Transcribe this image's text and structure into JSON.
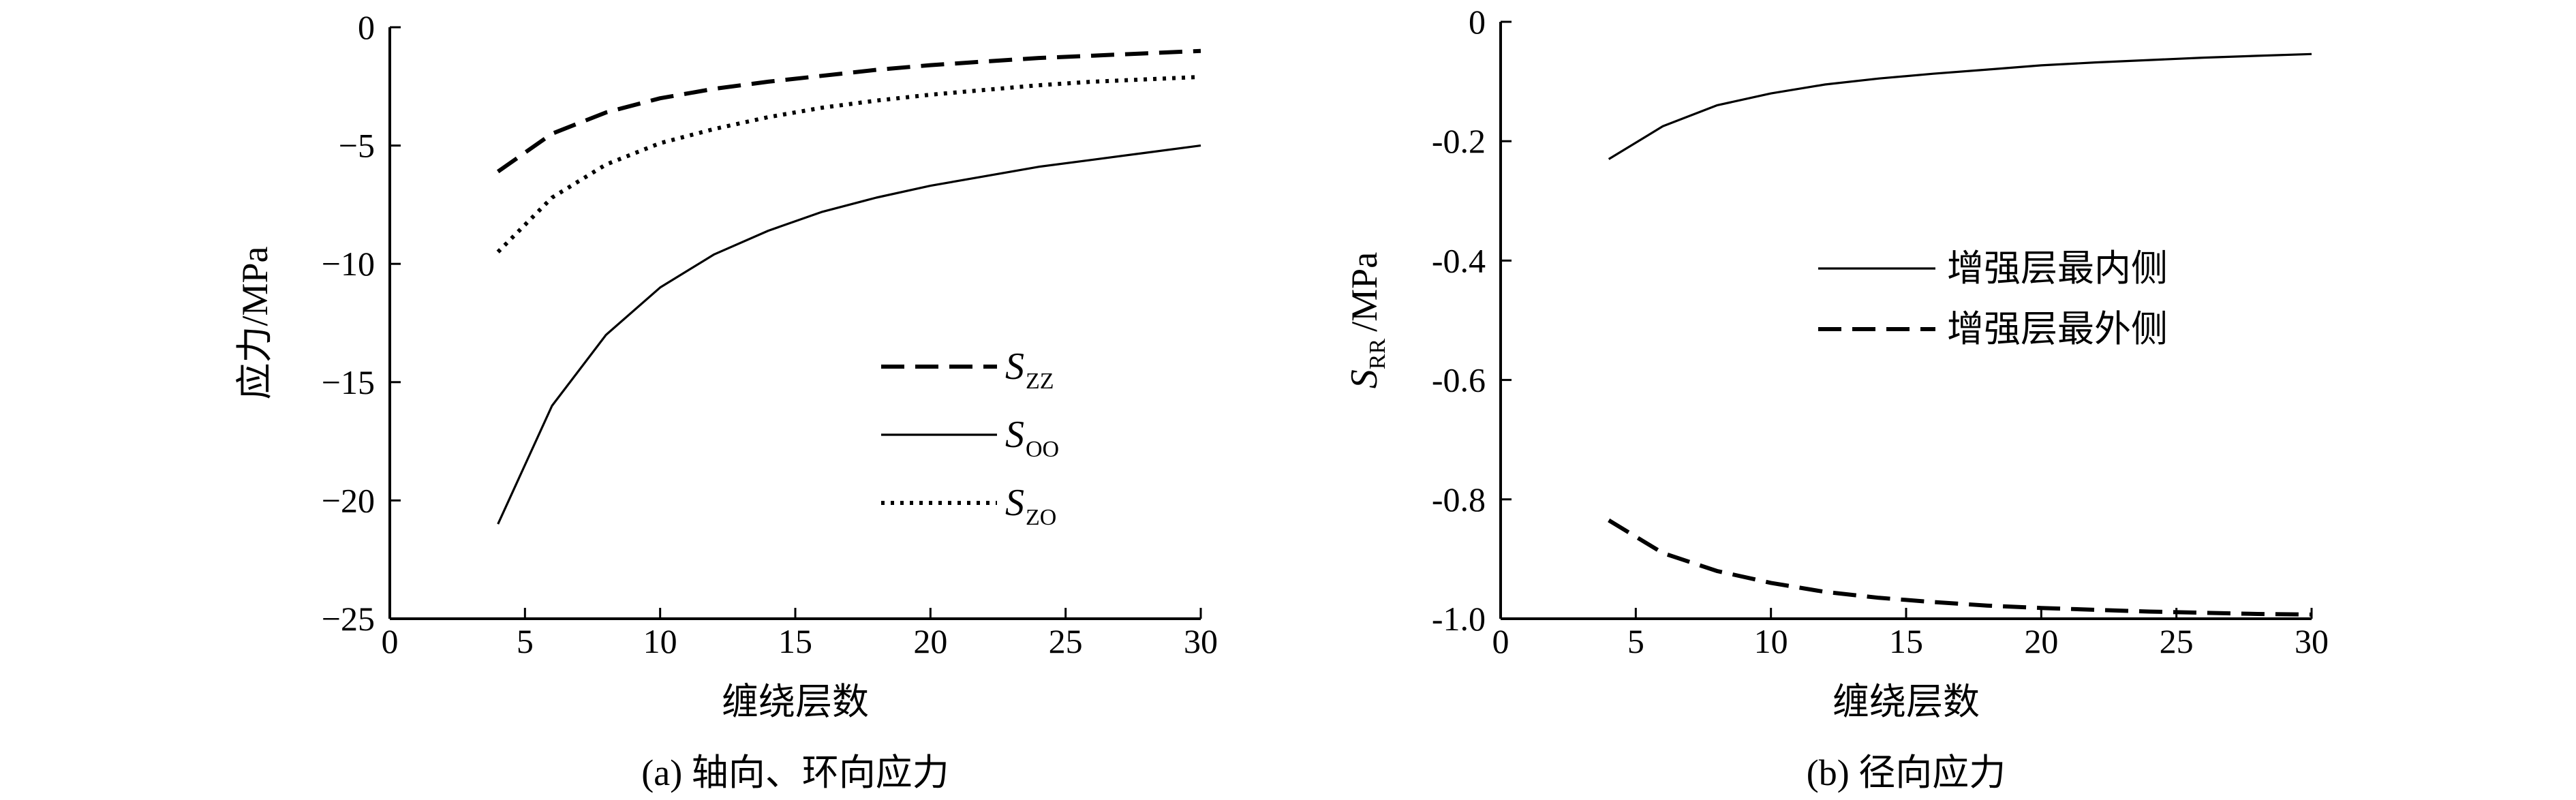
{
  "chart_data": [
    {
      "type": "line",
      "panel": "a",
      "caption": "(a) 轴向、环向应力",
      "xlabel": "缠绕层数",
      "ylabel": "应力/MPa",
      "xlim": [
        0,
        30
      ],
      "ylim": [
        -25,
        0
      ],
      "xticks": [
        0,
        5,
        10,
        15,
        20,
        25,
        30
      ],
      "yticks": [
        0,
        -5,
        -10,
        -15,
        -20,
        -25
      ],
      "xtick_labels": [
        "0",
        "5",
        "10",
        "15",
        "20",
        "25",
        "30"
      ],
      "ytick_labels": [
        "0",
        "−5",
        "−10",
        "−15",
        "−20",
        "−25"
      ],
      "legend_position": "right-middle",
      "grid": false,
      "x": [
        4,
        6,
        8,
        10,
        12,
        14,
        16,
        18,
        20,
        22,
        24,
        26,
        28,
        30
      ],
      "series": [
        {
          "symbol": "S",
          "subscript": "ZZ",
          "style": "dashed",
          "values": [
            -6.1,
            -4.5,
            -3.6,
            -3.0,
            -2.6,
            -2.3,
            -2.05,
            -1.8,
            -1.6,
            -1.45,
            -1.3,
            -1.2,
            -1.1,
            -1.0
          ]
        },
        {
          "symbol": "S",
          "subscript": "OO",
          "style": "solid",
          "values": [
            -21.0,
            -16.0,
            -13.0,
            -11.0,
            -9.6,
            -8.6,
            -7.8,
            -7.2,
            -6.7,
            -6.3,
            -5.9,
            -5.6,
            -5.3,
            -5.0
          ]
        },
        {
          "symbol": "S",
          "subscript": "ZO",
          "style": "dotted",
          "values": [
            -9.5,
            -7.2,
            -5.8,
            -4.9,
            -4.3,
            -3.8,
            -3.4,
            -3.1,
            -2.85,
            -2.65,
            -2.45,
            -2.3,
            -2.2,
            -2.1
          ]
        }
      ]
    },
    {
      "type": "line",
      "panel": "b",
      "caption": "(b) 径向应力",
      "xlabel": "缠绕层数",
      "ylabel_symbol": "S",
      "ylabel_subscript": "RR",
      "ylabel_unit": "/MPa",
      "xlim": [
        0,
        30
      ],
      "ylim": [
        -1.0,
        0
      ],
      "xticks": [
        0,
        5,
        10,
        15,
        20,
        25,
        30
      ],
      "yticks": [
        0,
        -0.2,
        -0.4,
        -0.6,
        -0.8,
        -1.0
      ],
      "xtick_labels": [
        "0",
        "5",
        "10",
        "15",
        "20",
        "25",
        "30"
      ],
      "ytick_labels": [
        "0",
        "-0.2",
        "-0.4",
        "-0.6",
        "-0.8",
        "-1.0"
      ],
      "legend_position": "upper-right",
      "grid": false,
      "x": [
        4,
        6,
        8,
        10,
        12,
        14,
        16,
        18,
        20,
        22,
        24,
        26,
        28,
        30
      ],
      "series": [
        {
          "name": "增强层最内侧",
          "style": "solid",
          "values": [
            -0.23,
            -0.175,
            -0.14,
            -0.12,
            -0.105,
            -0.095,
            -0.087,
            -0.08,
            -0.073,
            -0.068,
            -0.064,
            -0.06,
            -0.057,
            -0.054
          ]
        },
        {
          "name": "增强层最外侧",
          "style": "dashed",
          "values": [
            -0.835,
            -0.89,
            -0.92,
            -0.94,
            -0.955,
            -0.965,
            -0.972,
            -0.978,
            -0.982,
            -0.985,
            -0.988,
            -0.99,
            -0.992,
            -0.993
          ]
        }
      ]
    }
  ]
}
